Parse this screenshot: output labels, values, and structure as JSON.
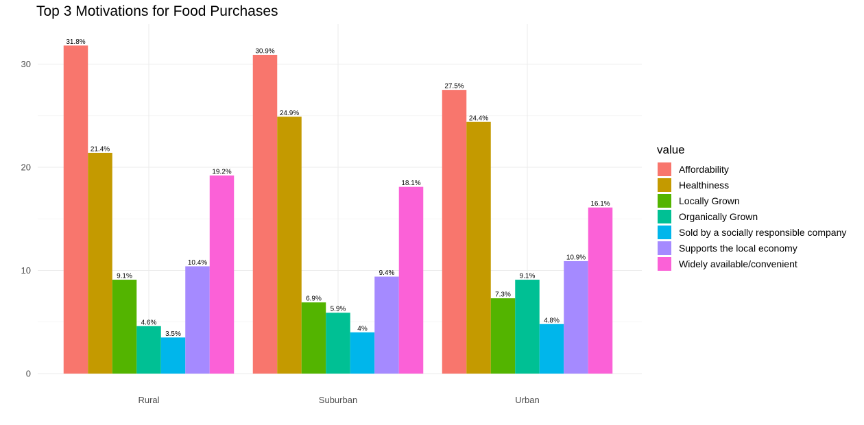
{
  "chart_data": {
    "type": "bar",
    "title": "Top 3 Motivations for Food Purchases",
    "xlabel": "",
    "ylabel": "",
    "categories": [
      "Rural",
      "Suburban",
      "Urban"
    ],
    "ylim": [
      0,
      33
    ],
    "yticks": [
      0,
      10,
      20,
      30
    ],
    "grid": true,
    "legend": {
      "title": "value",
      "position": "right"
    },
    "series": [
      {
        "name": "Affordability",
        "color": "#F8766D",
        "values": [
          31.8,
          30.9,
          27.5
        ],
        "labels": [
          "31.8%",
          "30.9%",
          "27.5%"
        ]
      },
      {
        "name": "Healthiness",
        "color": "#C49A00",
        "values": [
          21.4,
          24.9,
          24.4
        ],
        "labels": [
          "21.4%",
          "24.9%",
          "24.4%"
        ]
      },
      {
        "name": "Locally Grown",
        "color": "#53B400",
        "values": [
          9.1,
          6.9,
          7.3
        ],
        "labels": [
          "9.1%",
          "6.9%",
          "7.3%"
        ]
      },
      {
        "name": "Organically Grown",
        "color": "#00C094",
        "values": [
          4.6,
          5.9,
          9.1
        ],
        "labels": [
          "4.6%",
          "5.9%",
          "9.1%"
        ]
      },
      {
        "name": "Sold by a socially responsible company",
        "color": "#00B6EB",
        "values": [
          3.5,
          4.0,
          4.8
        ],
        "labels": [
          "3.5%",
          "4%",
          "4.8%"
        ]
      },
      {
        "name": "Supports the local economy",
        "color": "#A58AFF",
        "values": [
          10.4,
          9.4,
          10.9
        ],
        "labels": [
          "10.4%",
          "9.4%",
          "10.9%"
        ]
      },
      {
        "name": "Widely available/convenient",
        "color": "#FB61D7",
        "values": [
          19.2,
          18.1,
          16.1
        ],
        "labels": [
          "19.2%",
          "18.1%",
          "16.1%"
        ]
      }
    ]
  }
}
